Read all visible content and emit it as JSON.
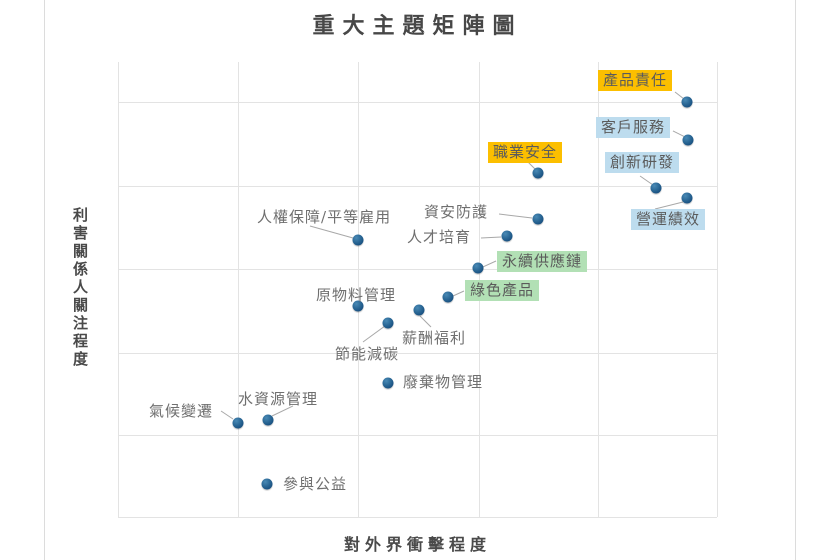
{
  "title": "重大主題矩陣圖",
  "axes": {
    "x_label": "對外界衝擊程度",
    "y_label": "利害關係人關注程度"
  },
  "colors": {
    "marker": "#1f5c8c",
    "marker_edge": "#143f62",
    "grid": "#e3e3e3",
    "leader": "#a8a8a8",
    "label_text": "#6f6f6f",
    "axis_text": "#4a4a4a",
    "title_text": "#474747",
    "highlight_orange": "#fcbf00",
    "highlight_blue": "#bddcee",
    "highlight_green": "#b2e0b5",
    "page_border": "#dcdcdc"
  },
  "chart_data": {
    "type": "scatter",
    "title": "重大主題矩陣圖",
    "xlabel": "對外界衝擊程度",
    "ylabel": "利害關係人關注程度",
    "xlim": [
      0,
      100
    ],
    "ylim": [
      0,
      100
    ],
    "tick_labels_visible": false,
    "grid_on": true,
    "grid_x_pct": [
      0,
      20.2,
      40.1,
      60.3,
      80.3,
      100
    ],
    "grid_y_pct": [
      8.8,
      27.3,
      45.7,
      64.0,
      82.0,
      100
    ],
    "points": [
      {
        "name": "產品責任",
        "x": 95,
        "y": 91,
        "highlight": "orange",
        "marker_pct": [
          94.99,
          8.79
        ],
        "label_pct": [
          80.13,
          1.76
        ],
        "leader": [
          92.99,
          6.59,
          94.49,
          8.13
        ]
      },
      {
        "name": "客戶服務",
        "x": 95,
        "y": 83,
        "highlight": "blue",
        "marker_pct": [
          95.16,
          17.14
        ],
        "label_pct": [
          79.8,
          12.09
        ],
        "leader": [
          92.65,
          15.16,
          94.66,
          16.48
        ]
      },
      {
        "name": "創新研發",
        "x": 90,
        "y": 72,
        "highlight": "blue",
        "marker_pct": [
          89.82,
          27.69
        ],
        "label_pct": [
          81.3,
          19.78
        ],
        "leader": [
          87.15,
          25.05,
          89.32,
          27.03
        ]
      },
      {
        "name": "營運績效",
        "x": 95,
        "y": 70,
        "highlight": "blue",
        "marker_pct": [
          94.99,
          29.89
        ],
        "label_pct": [
          85.64,
          32.31
        ],
        "leader": [
          89.65,
          32.31,
          94.32,
          30.77
        ]
      },
      {
        "name": "職業安全",
        "x": 70,
        "y": 76,
        "highlight": "orange",
        "marker_pct": [
          70.12,
          24.4
        ],
        "label_pct": [
          61.77,
          17.58
        ],
        "leader": [
          68.45,
          21.98,
          69.78,
          23.74
        ]
      },
      {
        "name": "資安防護",
        "x": 70,
        "y": 66,
        "highlight": "none",
        "marker_pct": [
          70.12,
          34.51
        ],
        "label_pct": [
          51.09,
          31.21
        ],
        "leader": [
          63.61,
          33.41,
          69.12,
          34.29
        ]
      },
      {
        "name": "人才培育",
        "x": 65,
        "y": 62,
        "highlight": "none",
        "marker_pct": [
          64.94,
          38.24
        ],
        "label_pct": [
          48.25,
          36.7
        ],
        "leader": [
          60.6,
          38.68,
          63.94,
          38.46
        ]
      },
      {
        "name": "人權保障/平等雇用",
        "x": 40,
        "y": 61,
        "highlight": "none",
        "marker_pct": [
          40.07,
          39.12
        ],
        "label_pct": [
          23.21,
          32.31
        ],
        "leader": [
          32.05,
          36.04,
          39.23,
          38.68
        ]
      },
      {
        "name": "永續供應鏈",
        "x": 60,
        "y": 55,
        "highlight": "green",
        "marker_pct": [
          60.1,
          45.27
        ],
        "label_pct": [
          63.27,
          41.54
        ],
        "leader": [
          63.11,
          43.74,
          60.93,
          45.05
        ]
      },
      {
        "name": "綠色產品",
        "x": 55,
        "y": 48,
        "highlight": "green",
        "marker_pct": [
          55.09,
          51.65
        ],
        "label_pct": [
          57.93,
          47.91
        ],
        "leader": [
          57.76,
          50.33,
          55.93,
          51.43
        ]
      },
      {
        "name": "原物料管理",
        "x": 40,
        "y": 46,
        "highlight": "none",
        "marker_pct": [
          40.07,
          53.63
        ],
        "label_pct": [
          33.06,
          49.45
        ],
        "leader": null
      },
      {
        "name": "薪酬福利",
        "x": 50,
        "y": 46,
        "highlight": "none",
        "marker_pct": [
          50.25,
          54.51
        ],
        "label_pct": [
          47.41,
          58.9
        ],
        "leader": [
          50.42,
          55.82,
          52.25,
          58.24
        ]
      },
      {
        "name": "節能減碳",
        "x": 45,
        "y": 43,
        "highlight": "none",
        "marker_pct": [
          45.08,
          57.36
        ],
        "label_pct": [
          36.23,
          62.42
        ],
        "leader": [
          44.57,
          58.02,
          40.9,
          61.54
        ]
      },
      {
        "name": "廢棄物管理",
        "x": 45,
        "y": 30,
        "highlight": "none",
        "marker_pct": [
          45.08,
          70.55
        ],
        "label_pct": [
          47.58,
          68.57
        ],
        "leader": null
      },
      {
        "name": "水資源管理",
        "x": 25,
        "y": 21,
        "highlight": "none",
        "marker_pct": [
          25.04,
          78.68
        ],
        "label_pct": [
          20.03,
          72.31
        ],
        "leader": [
          29.22,
          75.6,
          25.71,
          77.8
        ]
      },
      {
        "name": "氣候變遷",
        "x": 20,
        "y": 21,
        "highlight": "none",
        "marker_pct": [
          20.03,
          79.34
        ],
        "label_pct": [
          5.18,
          74.95
        ],
        "leader": [
          17.2,
          76.7,
          19.2,
          78.46
        ]
      },
      {
        "name": "參與公益",
        "x": 25,
        "y": 7,
        "highlight": "none",
        "marker_pct": [
          24.87,
          92.75
        ],
        "label_pct": [
          27.55,
          90.99
        ],
        "leader": null
      }
    ]
  }
}
